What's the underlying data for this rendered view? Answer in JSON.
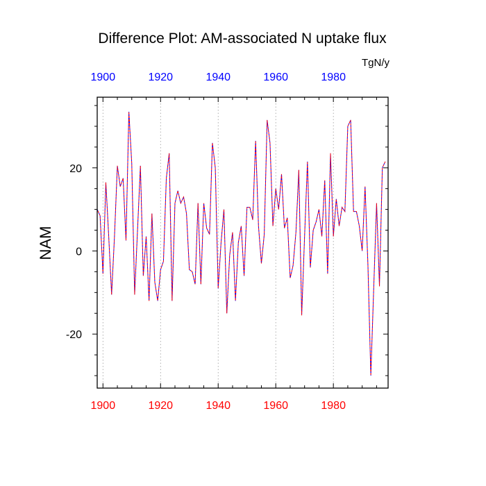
{
  "chart_data": {
    "type": "line",
    "title": "Difference Plot: AM-associated N uptake flux",
    "units": "TgN/y",
    "ylabel": "NAM",
    "xlabel": "",
    "xlim": [
      1898,
      1999
    ],
    "ylim": [
      -33,
      37
    ],
    "x_ticks": [
      1900,
      1920,
      1940,
      1960,
      1980
    ],
    "y_ticks": [
      -20,
      0,
      20
    ],
    "grid": "vertical dotted lines at x ticks",
    "colors": {
      "top_axis_labels": "#0000ff",
      "bottom_axis_labels": "#ff0000",
      "series_a": "#0000ff",
      "series_b": "#ff0000"
    },
    "x_start": 1898,
    "series": [
      {
        "values": [
          10,
          8.5,
          -5.5,
          16.5,
          3.5,
          -10.5,
          3.5,
          20.5,
          15.5,
          17.5,
          2.5,
          33.5,
          21,
          -10.5,
          5,
          20.5,
          -6,
          3.5,
          -12,
          9,
          -7.5,
          -12,
          -4.5,
          -2.5,
          17.5,
          23.5,
          -12,
          11.5,
          14.5,
          11.5,
          13,
          9,
          -4.5,
          -5,
          -8,
          11.5,
          -8,
          11.5,
          5.5,
          4,
          26,
          20,
          -9,
          2,
          10,
          -15,
          -1,
          4.5,
          -12,
          2,
          6,
          -6,
          10.5,
          10.5,
          7.5,
          26.5,
          6,
          -3,
          4,
          31.5,
          26,
          6,
          15,
          10,
          18.5,
          5.5,
          8,
          -6.5,
          -3.5,
          4.5,
          19.5,
          -15.5,
          3.5,
          21.5,
          -4,
          5,
          7,
          10,
          3.5,
          17,
          -5.5,
          23.5,
          3.5,
          12.5,
          6,
          10.5,
          9.5,
          30,
          31.5,
          9.5,
          9.5,
          6,
          0,
          15.5,
          -3.5,
          -30,
          -9,
          11.5,
          -8.5,
          20,
          21.5
        ]
      }
    ]
  }
}
